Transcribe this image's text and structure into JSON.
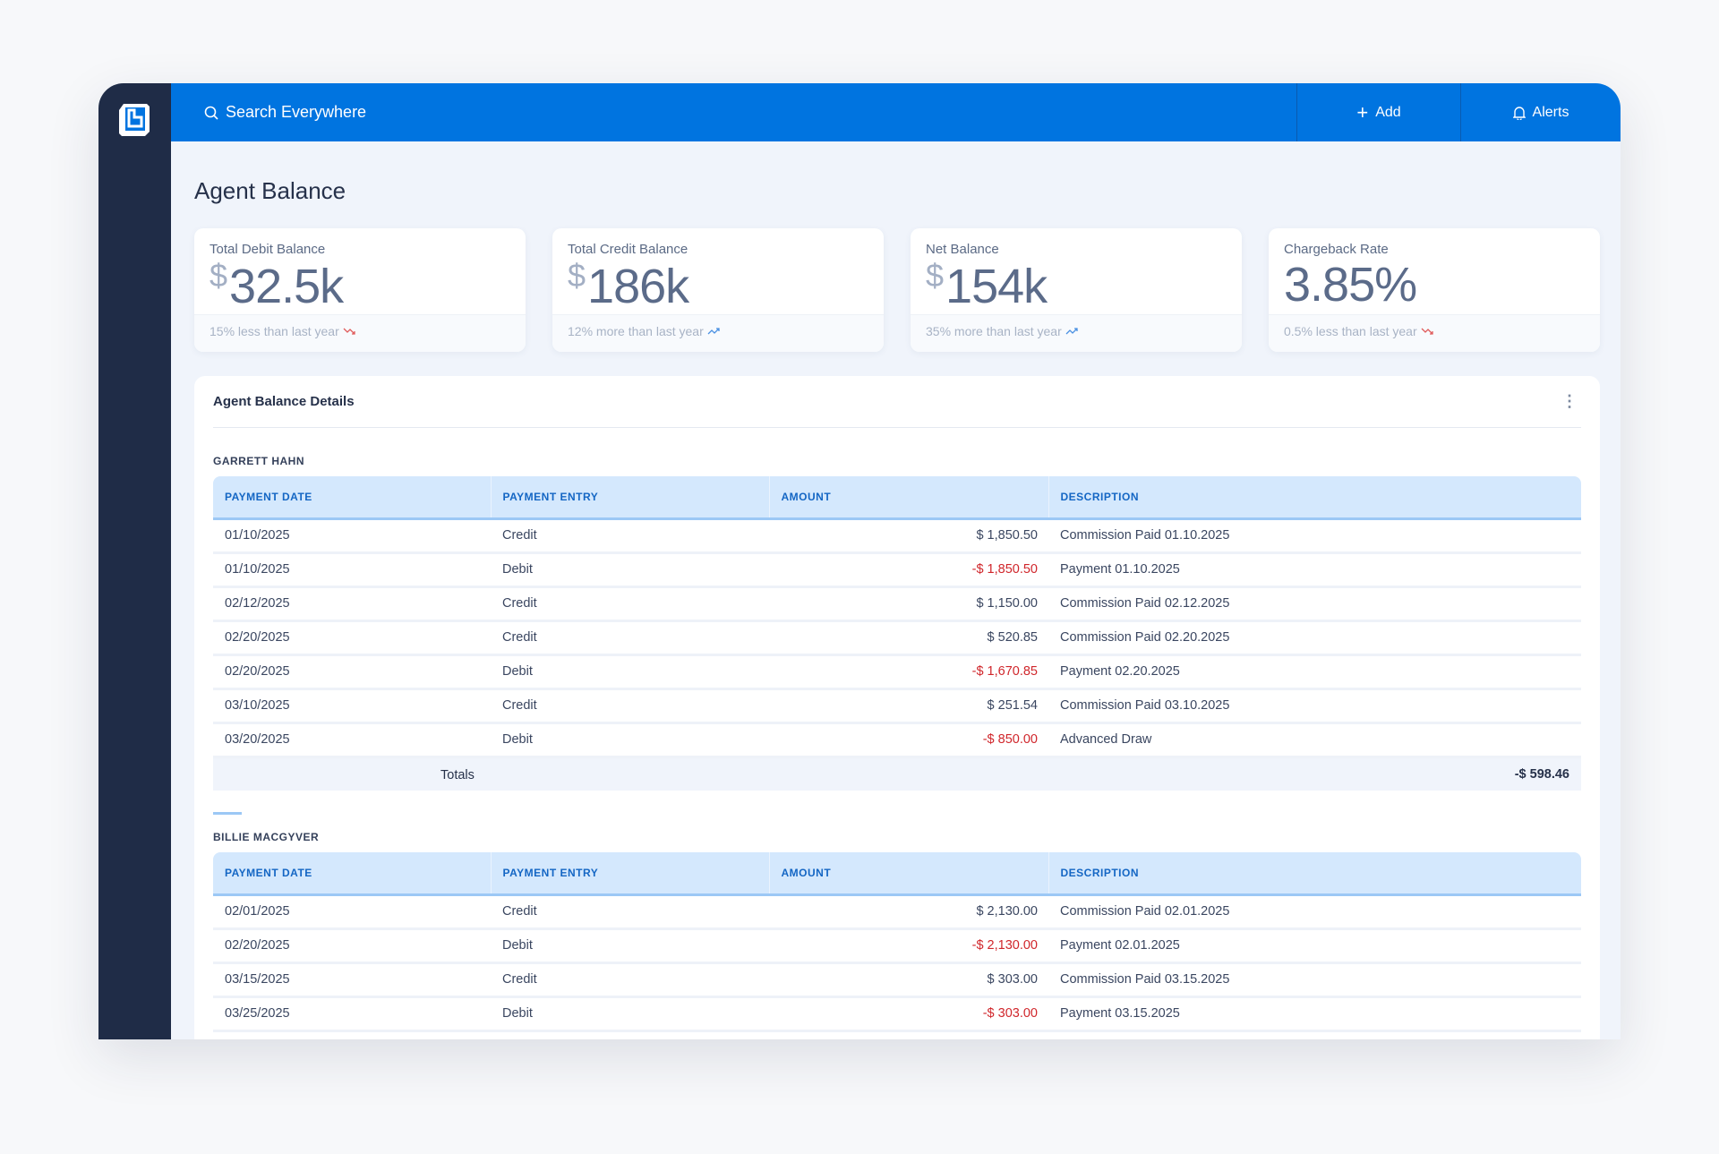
{
  "topbar": {
    "search_placeholder": "Search Everywhere",
    "add_label": "Add",
    "alerts_label": "Alerts"
  },
  "page": {
    "title": "Agent Balance"
  },
  "cards": [
    {
      "label": "Total Debit Balance",
      "currency": "$",
      "value": "32.5k",
      "trend": "15% less than last year",
      "trend_dir": "down",
      "trend_color": "#e05a5a"
    },
    {
      "label": "Total Credit Balance",
      "currency": "$",
      "value": "186k",
      "trend": "12% more than last year",
      "trend_dir": "up",
      "trend_color": "#4a90e2"
    },
    {
      "label": "Net Balance",
      "currency": "$",
      "value": "154k",
      "trend": "35% more than last year",
      "trend_dir": "up",
      "trend_color": "#4a90e2"
    },
    {
      "label": "Chargeback Rate",
      "currency": "",
      "value": "3.85%",
      "trend": "0.5% less than last year",
      "trend_dir": "down",
      "trend_color": "#e05a5a"
    }
  ],
  "details": {
    "title": "Agent Balance Details",
    "columns": [
      "PAYMENT DATE",
      "PAYMENT ENTRY",
      "AMOUNT",
      "DESCRIPTION"
    ],
    "agents": [
      {
        "name": "GARRETT HAHN",
        "rows": [
          [
            "01/10/2025",
            "Credit",
            "$ 1,850.50",
            "Commission Paid 01.10.2025"
          ],
          [
            "01/10/2025",
            "Debit",
            "-$ 1,850.50",
            "Payment 01.10.2025"
          ],
          [
            "02/12/2025",
            "Credit",
            "$ 1,150.00",
            "Commission Paid 02.12.2025"
          ],
          [
            "02/20/2025",
            "Credit",
            "$ 520.85",
            "Commission Paid 02.20.2025"
          ],
          [
            "02/20/2025",
            "Debit",
            "-$ 1,670.85",
            "Payment 02.20.2025"
          ],
          [
            "03/10/2025",
            "Credit",
            "$ 251.54",
            "Commission Paid 03.10.2025"
          ],
          [
            "03/20/2025",
            "Debit",
            "-$ 850.00",
            "Advanced Draw"
          ]
        ],
        "totals_label": "Totals",
        "totals_value": "-$ 598.46"
      },
      {
        "name": "BILLIE MACGYVER",
        "rows": [
          [
            "02/01/2025",
            "Credit",
            "$ 2,130.00",
            "Commission Paid 02.01.2025"
          ],
          [
            "02/20/2025",
            "Debit",
            "-$ 2,130.00",
            "Payment 02.01.2025"
          ],
          [
            "03/15/2025",
            "Credit",
            "$ 303.00",
            "Commission Paid 03.15.2025"
          ],
          [
            "03/25/2025",
            "Debit",
            "-$ 303.00",
            "Payment 03.15.2025"
          ]
        ]
      }
    ]
  },
  "colors": {
    "brand": "#0074e0",
    "sidebar": "#1f2c47",
    "negative": "#d0262b"
  }
}
